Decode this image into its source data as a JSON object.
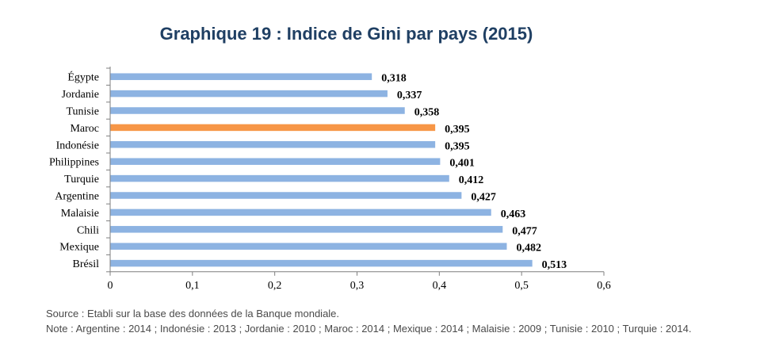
{
  "title": "Graphique 19 : Indice de Gini par pays (2015)",
  "chart_data": {
    "type": "bar",
    "orientation": "horizontal",
    "categories": [
      "Égypte",
      "Jordanie",
      "Tunisie",
      "Maroc",
      "Indonésie",
      "Philippines",
      "Turquie",
      "Argentine",
      "Malaisie",
      "Chili",
      "Mexique",
      "Brésil"
    ],
    "values": [
      0.318,
      0.337,
      0.358,
      0.395,
      0.395,
      0.401,
      0.412,
      0.427,
      0.463,
      0.477,
      0.482,
      0.513
    ],
    "value_labels": [
      "0,318",
      "0,337",
      "0,358",
      "0,395",
      "0,395",
      "0,401",
      "0,412",
      "0,427",
      "0,463",
      "0,477",
      "0,482",
      "0,513"
    ],
    "highlight_category": "Maroc",
    "xlim": [
      0,
      0.6
    ],
    "xticks": [
      0,
      0.1,
      0.2,
      0.3,
      0.4,
      0.5,
      0.6
    ],
    "xtick_labels": [
      "0",
      "0,1",
      "0,2",
      "0,3",
      "0,4",
      "0,5",
      "0,6"
    ],
    "grid": false,
    "colors": {
      "bar": "#8db3e2",
      "highlight": "#f79646",
      "axis": "#7f7f7f",
      "title": "#1f3f63"
    }
  },
  "notes": {
    "source": "Source : Etabli sur la base des données de la Banque mondiale.",
    "note": "Note : Argentine : 2014 ; Indonésie : 2013 ; Jordanie : 2010 ; Maroc : 2014 ; Mexique : 2014 ; Malaisie : 2009 ; Tunisie : 2010 ; Turquie : 2014."
  }
}
